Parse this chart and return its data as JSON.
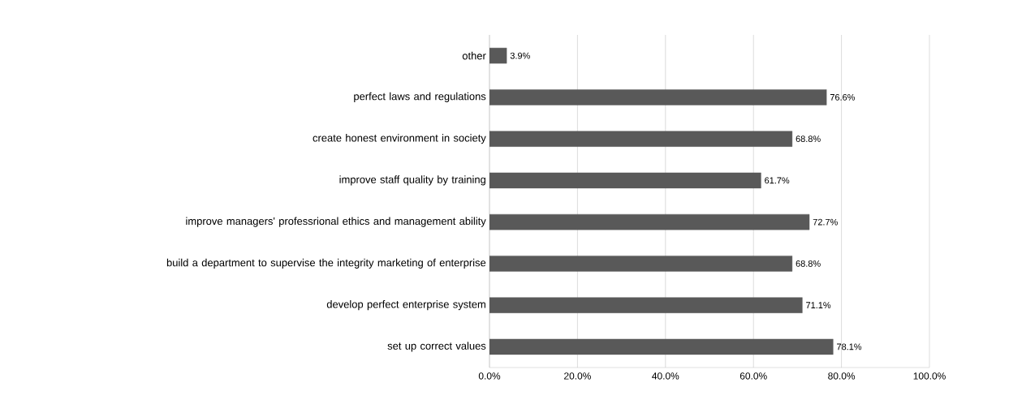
{
  "chart_data": {
    "type": "bar",
    "orientation": "horizontal",
    "categories": [
      "other",
      "perfect laws and regulations",
      "create honest environment in society",
      "improve staff quality by training",
      "improve managers' professrional ethics and management ability",
      "build a department to supervise the integrity marketing of enterprise",
      "develop perfect enterprise system",
      "set up correct values"
    ],
    "values": [
      3.9,
      76.6,
      68.8,
      61.7,
      72.7,
      68.8,
      71.1,
      78.1
    ],
    "value_labels": [
      "3.9%",
      "76.6%",
      "68.8%",
      "61.7%",
      "72.7%",
      "68.8%",
      "71.1%",
      "78.1%"
    ],
    "color": "#595959",
    "xlim": [
      0,
      100
    ],
    "xticks": [
      {
        "value": 0,
        "label": "0.0%"
      },
      {
        "value": 20,
        "label": "20.0%"
      },
      {
        "value": 40,
        "label": "40.0%"
      },
      {
        "value": 60,
        "label": "60.0%"
      },
      {
        "value": 80,
        "label": "80.0%"
      },
      {
        "value": 100,
        "label": "100.0%"
      }
    ],
    "grid": "x"
  }
}
